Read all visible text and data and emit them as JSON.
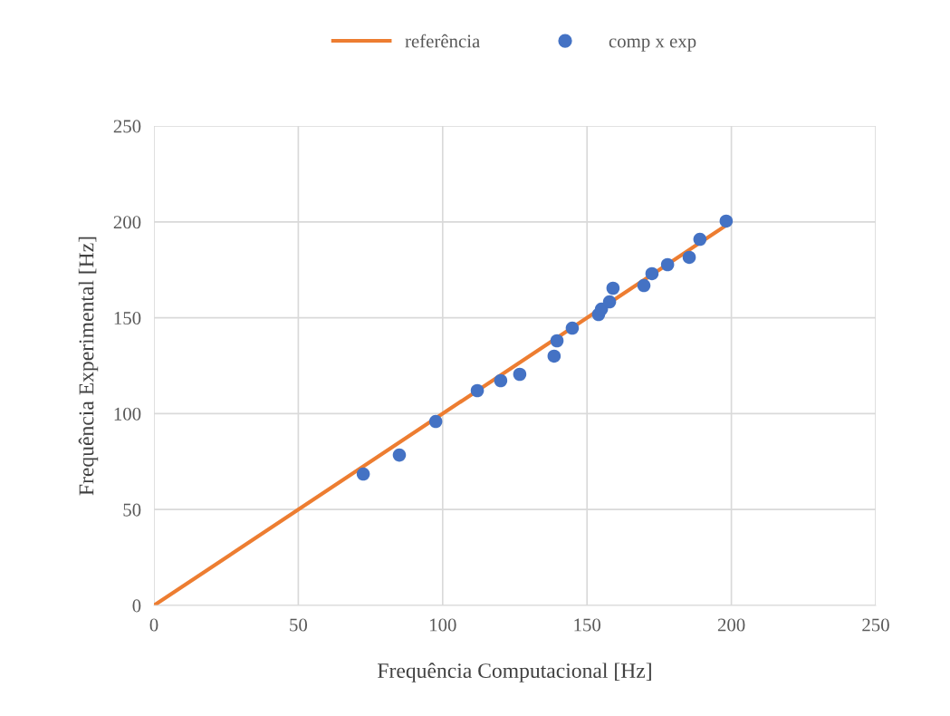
{
  "chart_data": {
    "type": "scatter",
    "xlabel": "Frequência Computacional [Hz]",
    "ylabel": "Frequência Experimental [Hz]",
    "series": [
      {
        "name": "referência",
        "type": "line",
        "color": "#ed7d31",
        "x": [
          0,
          198
        ],
        "values": [
          0,
          198
        ]
      },
      {
        "name": "comp x exp",
        "color": "#4472c4",
        "marker": "circle",
        "x": [
          72.5,
          85,
          97.6,
          112,
          120.1,
          126.7,
          138.6,
          139.6,
          144.9,
          154,
          155,
          157.8,
          159,
          169.7,
          172.5,
          177.9,
          185.4,
          189.1,
          198.2
        ],
        "values": [
          68.5,
          78.4,
          95.9,
          112,
          117.2,
          120.5,
          130,
          138,
          144.6,
          151.7,
          154.5,
          158.3,
          165.4,
          166.8,
          173,
          177.7,
          181.5,
          190.9,
          200.4
        ]
      }
    ],
    "xlim": [
      0,
      250
    ],
    "ylim": [
      0,
      250
    ],
    "xticks": [
      0,
      50,
      100,
      150,
      200,
      250
    ],
    "yticks": [
      0,
      50,
      100,
      150,
      200,
      250
    ],
    "grid": true,
    "legend": "top"
  }
}
